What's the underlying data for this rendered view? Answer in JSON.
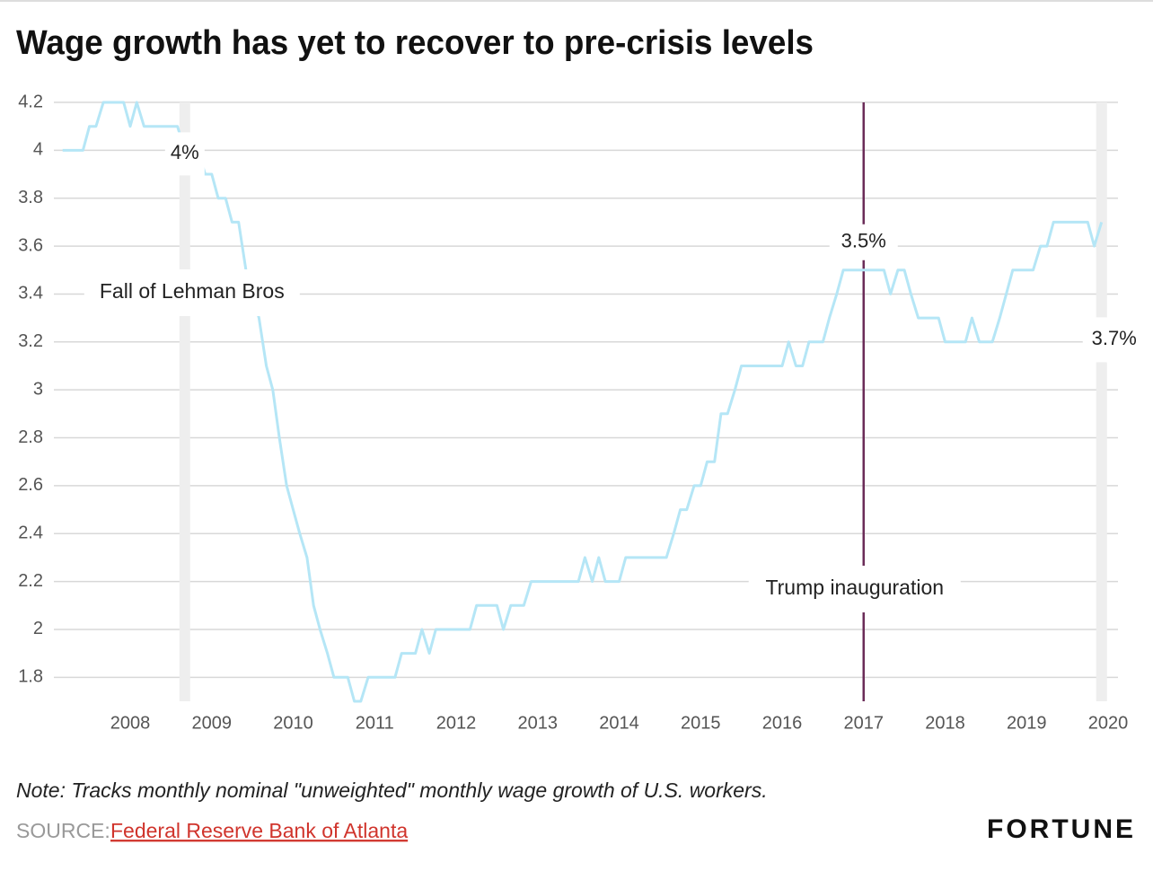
{
  "chart_data": {
    "type": "line",
    "title": "Wage growth has yet to recover to pre-crisis levels",
    "note": "Note: Tracks monthly nominal \"unweighted\" monthly wage growth of U.S. workers.",
    "source_label": "SOURCE:",
    "source": "Federal Reserve Bank of Atlanta",
    "brand": "FORTUNE",
    "xlim": [
      2007,
      2020.3
    ],
    "xticks": [
      2008,
      2009,
      2010,
      2011,
      2012,
      2013,
      2014,
      2015,
      2016,
      2017,
      2018,
      2019,
      2020
    ],
    "ylim": [
      1.7,
      4.2
    ],
    "yticks": [
      1.8,
      2,
      2.2,
      2.4,
      2.6,
      2.8,
      3,
      3.2,
      3.4,
      3.6,
      3.8,
      4,
      4.2
    ],
    "grid": true,
    "x": [
      2007.17,
      2007.25,
      2007.33,
      2007.42,
      2007.5,
      2007.58,
      2007.67,
      2007.75,
      2007.83,
      2007.92,
      2008,
      2008.08,
      2008.17,
      2008.25,
      2008.33,
      2008.42,
      2008.5,
      2008.58,
      2008.67,
      2008.75,
      2008.83,
      2008.92,
      2009,
      2009.08,
      2009.17,
      2009.25,
      2009.33,
      2009.42,
      2009.5,
      2009.58,
      2009.67,
      2009.75,
      2009.83,
      2009.92,
      2010,
      2010.08,
      2010.17,
      2010.25,
      2010.33,
      2010.42,
      2010.5,
      2010.58,
      2010.67,
      2010.75,
      2010.83,
      2010.92,
      2011,
      2011.08,
      2011.17,
      2011.25,
      2011.33,
      2011.42,
      2011.5,
      2011.58,
      2011.67,
      2011.75,
      2011.83,
      2011.92,
      2012,
      2012.08,
      2012.17,
      2012.25,
      2012.33,
      2012.42,
      2012.5,
      2012.58,
      2012.67,
      2012.75,
      2012.83,
      2012.92,
      2013,
      2013.08,
      2013.17,
      2013.25,
      2013.33,
      2013.42,
      2013.5,
      2013.58,
      2013.67,
      2013.75,
      2013.83,
      2013.92,
      2014,
      2014.08,
      2014.17,
      2014.25,
      2014.33,
      2014.42,
      2014.5,
      2014.58,
      2014.67,
      2014.75,
      2014.83,
      2014.92,
      2015,
      2015.08,
      2015.17,
      2015.25,
      2015.33,
      2015.42,
      2015.5,
      2015.58,
      2015.67,
      2015.75,
      2015.83,
      2015.92,
      2016,
      2016.08,
      2016.17,
      2016.25,
      2016.33,
      2016.42,
      2016.5,
      2016.58,
      2016.67,
      2016.75,
      2016.83,
      2016.92,
      2017,
      2017.08,
      2017.17,
      2017.25,
      2017.33,
      2017.42,
      2017.5,
      2017.58,
      2017.67,
      2017.75,
      2017.83,
      2017.92,
      2018,
      2018.08,
      2018.17,
      2018.25,
      2018.33,
      2018.42,
      2018.5,
      2018.58,
      2018.67,
      2018.75,
      2018.83,
      2018.92,
      2019,
      2019.08,
      2019.17,
      2019.25,
      2019.33,
      2019.42,
      2019.5,
      2019.58,
      2019.67,
      2019.75,
      2019.83,
      2019.92
    ],
    "series": [
      {
        "color": "#b5e6f6",
        "values": [
          4.0,
          4.0,
          4.0,
          4.0,
          4.1,
          4.1,
          4.2,
          4.2,
          4.2,
          4.2,
          4.1,
          4.2,
          4.1,
          4.1,
          4.1,
          4.1,
          4.1,
          4.1,
          4.0,
          4.0,
          4.0,
          3.9,
          3.9,
          3.8,
          3.8,
          3.7,
          3.7,
          3.5,
          3.4,
          3.3,
          3.1,
          3.0,
          2.8,
          2.6,
          2.5,
          2.4,
          2.3,
          2.1,
          2.0,
          1.9,
          1.8,
          1.8,
          1.8,
          1.7,
          1.7,
          1.8,
          1.8,
          1.8,
          1.8,
          1.8,
          1.9,
          1.9,
          1.9,
          2.0,
          1.9,
          2.0,
          2.0,
          2.0,
          2.0,
          2.0,
          2.0,
          2.1,
          2.1,
          2.1,
          2.1,
          2.0,
          2.1,
          2.1,
          2.1,
          2.2,
          2.2,
          2.2,
          2.2,
          2.2,
          2.2,
          2.2,
          2.2,
          2.3,
          2.2,
          2.3,
          2.2,
          2.2,
          2.2,
          2.3,
          2.3,
          2.3,
          2.3,
          2.3,
          2.3,
          2.3,
          2.4,
          2.5,
          2.5,
          2.6,
          2.6,
          2.7,
          2.7,
          2.9,
          2.9,
          3.0,
          3.1,
          3.1,
          3.1,
          3.1,
          3.1,
          3.1,
          3.1,
          3.2,
          3.1,
          3.1,
          3.2,
          3.2,
          3.2,
          3.3,
          3.4,
          3.5,
          3.5,
          3.5,
          3.5,
          3.5,
          3.5,
          3.5,
          3.4,
          3.5,
          3.5,
          3.4,
          3.3,
          3.3,
          3.3,
          3.3,
          3.2,
          3.2,
          3.2,
          3.2,
          3.3,
          3.2,
          3.2,
          3.2,
          3.3,
          3.4,
          3.5,
          3.5,
          3.5,
          3.5,
          3.6,
          3.6,
          3.7,
          3.7,
          3.7,
          3.7,
          3.7,
          3.7,
          3.6,
          3.7
        ]
      }
    ],
    "markers": [
      {
        "x": 2008.67,
        "label": "Fall of Lehman Bros",
        "value": 4,
        "value_label": "4%",
        "color": "#eeeeee"
      },
      {
        "x": 2017,
        "label": "Trump inauguration",
        "value": 3.5,
        "value_label": "3.5%",
        "color": "#6b2c58"
      },
      {
        "x": 2019.92,
        "value": 3.7,
        "value_label": "3.7%",
        "color": "#eeeeee"
      }
    ]
  }
}
